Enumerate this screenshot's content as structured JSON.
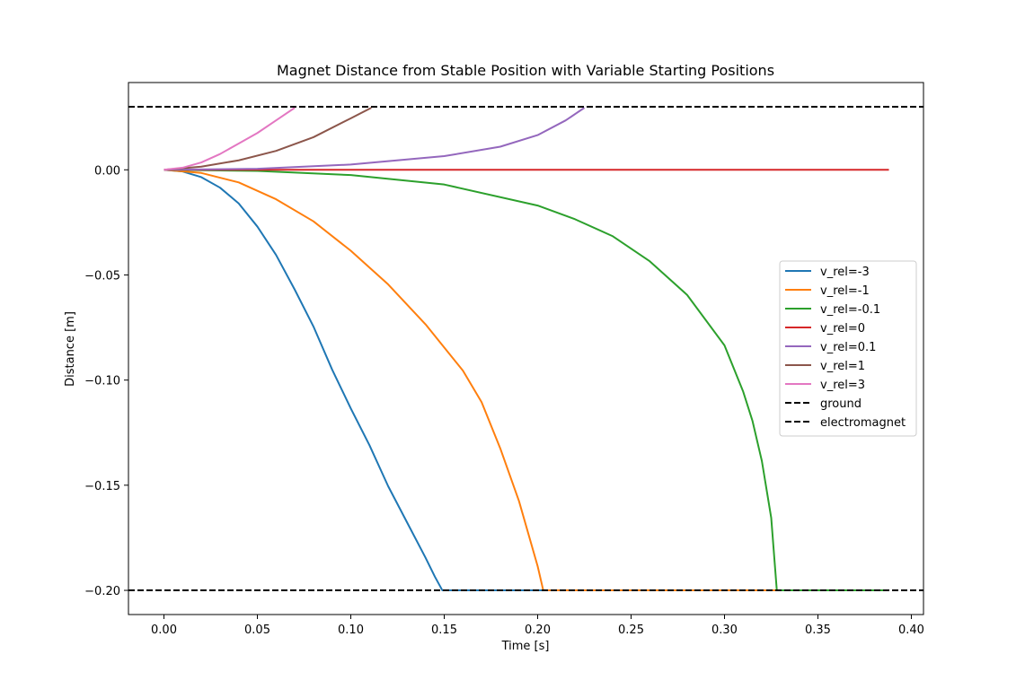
{
  "chart_data": {
    "type": "line",
    "title": "Magnet Distance from Stable Position with Variable Starting Positions",
    "xlabel": "Time [s]",
    "ylabel": "Distance [m]",
    "xlim": [
      -0.019,
      0.4065
    ],
    "ylim": [
      -0.2115,
      0.0415
    ],
    "xticks": [
      0.0,
      0.05,
      0.1,
      0.15,
      0.2,
      0.25,
      0.3,
      0.35,
      0.4
    ],
    "xtick_labels": [
      "0.00",
      "0.05",
      "0.10",
      "0.15",
      "0.20",
      "0.25",
      "0.30",
      "0.35",
      "0.40"
    ],
    "yticks": [
      0.0,
      -0.05,
      -0.1,
      -0.15,
      -0.2
    ],
    "ytick_labels": [
      "0.00",
      "−0.05",
      "−0.10",
      "−0.15",
      "−0.20"
    ],
    "grid": false,
    "legend_position": "center-right",
    "series": [
      {
        "name": "v_rel=-3",
        "color": "#1f77b4",
        "style": "solid",
        "points": [
          [
            0.0,
            0.0
          ],
          [
            0.01,
            -0.0008
          ],
          [
            0.02,
            -0.0035
          ],
          [
            0.03,
            -0.0085
          ],
          [
            0.04,
            -0.016
          ],
          [
            0.05,
            -0.027
          ],
          [
            0.06,
            -0.0405
          ],
          [
            0.07,
            -0.057
          ],
          [
            0.08,
            -0.0745
          ],
          [
            0.09,
            -0.095
          ],
          [
            0.1,
            -0.1135
          ],
          [
            0.11,
            -0.131
          ],
          [
            0.12,
            -0.1505
          ],
          [
            0.13,
            -0.1675
          ],
          [
            0.14,
            -0.1845
          ],
          [
            0.145,
            -0.1935
          ],
          [
            0.149,
            -0.2
          ],
          [
            0.2,
            -0.2
          ],
          [
            0.3,
            -0.2
          ],
          [
            0.388,
            -0.2
          ]
        ]
      },
      {
        "name": "v_rel=-1",
        "color": "#ff7f0e",
        "style": "solid",
        "points": [
          [
            0.0,
            0.0
          ],
          [
            0.02,
            -0.0015
          ],
          [
            0.04,
            -0.006
          ],
          [
            0.06,
            -0.014
          ],
          [
            0.08,
            -0.0245
          ],
          [
            0.1,
            -0.0385
          ],
          [
            0.12,
            -0.0545
          ],
          [
            0.14,
            -0.0735
          ],
          [
            0.16,
            -0.0955
          ],
          [
            0.17,
            -0.1105
          ],
          [
            0.18,
            -0.1325
          ],
          [
            0.19,
            -0.1575
          ],
          [
            0.2,
            -0.1885
          ],
          [
            0.203,
            -0.2
          ],
          [
            0.3,
            -0.2
          ],
          [
            0.388,
            -0.2
          ]
        ]
      },
      {
        "name": "v_rel=-0.1",
        "color": "#2ca02c",
        "style": "solid",
        "points": [
          [
            0.0,
            0.0
          ],
          [
            0.05,
            -0.0005
          ],
          [
            0.1,
            -0.0025
          ],
          [
            0.15,
            -0.007
          ],
          [
            0.2,
            -0.017
          ],
          [
            0.22,
            -0.0235
          ],
          [
            0.24,
            -0.0315
          ],
          [
            0.26,
            -0.0435
          ],
          [
            0.28,
            -0.0595
          ],
          [
            0.3,
            -0.0835
          ],
          [
            0.31,
            -0.1055
          ],
          [
            0.315,
            -0.1195
          ],
          [
            0.32,
            -0.1385
          ],
          [
            0.325,
            -0.1655
          ],
          [
            0.328,
            -0.2
          ],
          [
            0.388,
            -0.2
          ]
        ]
      },
      {
        "name": "v_rel=0",
        "color": "#d62728",
        "style": "solid",
        "points": [
          [
            0.0,
            0.0
          ],
          [
            0.388,
            0.0
          ]
        ]
      },
      {
        "name": "v_rel=0.1",
        "color": "#9467bd",
        "style": "solid",
        "points": [
          [
            0.0,
            0.0
          ],
          [
            0.05,
            0.0005
          ],
          [
            0.1,
            0.0025
          ],
          [
            0.15,
            0.0065
          ],
          [
            0.18,
            0.011
          ],
          [
            0.2,
            0.0165
          ],
          [
            0.215,
            0.0235
          ],
          [
            0.225,
            0.0295
          ]
        ]
      },
      {
        "name": "v_rel=1",
        "color": "#8c564b",
        "style": "solid",
        "points": [
          [
            0.0,
            0.0
          ],
          [
            0.02,
            0.0015
          ],
          [
            0.04,
            0.0045
          ],
          [
            0.06,
            0.009
          ],
          [
            0.08,
            0.0155
          ],
          [
            0.1,
            0.0245
          ],
          [
            0.111,
            0.0295
          ]
        ]
      },
      {
        "name": "v_rel=3",
        "color": "#e377c2",
        "style": "solid",
        "points": [
          [
            0.0,
            0.0
          ],
          [
            0.01,
            0.001
          ],
          [
            0.02,
            0.0035
          ],
          [
            0.03,
            0.0075
          ],
          [
            0.04,
            0.0125
          ],
          [
            0.05,
            0.0175
          ],
          [
            0.06,
            0.0235
          ],
          [
            0.07,
            0.0295
          ]
        ]
      },
      {
        "name": "ground",
        "color": "#000000",
        "style": "dashed",
        "points": [
          [
            -0.019,
            -0.2
          ],
          [
            0.4065,
            -0.2
          ]
        ]
      },
      {
        "name": "electromagnet",
        "color": "#000000",
        "style": "dashed",
        "points": [
          [
            -0.019,
            0.03
          ],
          [
            0.4065,
            0.03
          ]
        ]
      }
    ]
  }
}
